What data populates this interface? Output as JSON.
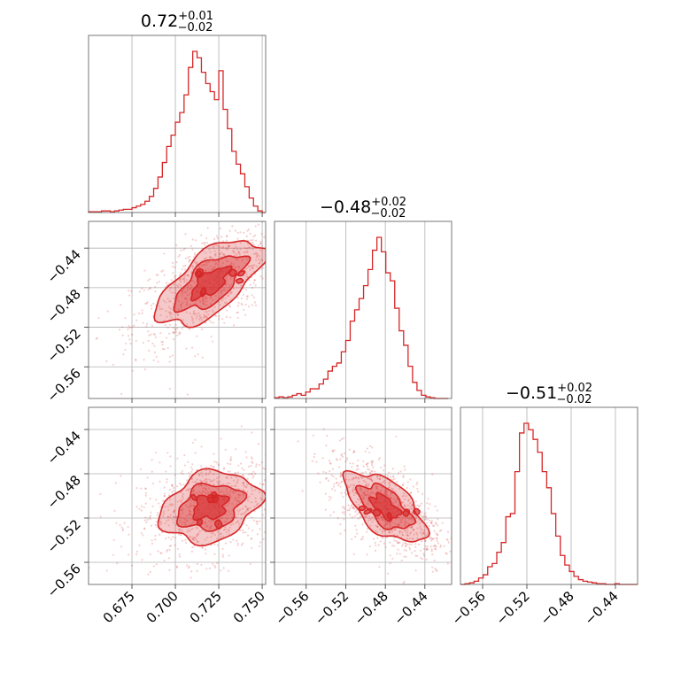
{
  "chart_data": {
    "type": "corner",
    "color": "#d62728",
    "parameters": [
      {
        "title_value": "0.72",
        "title_plus": "+0.01",
        "title_minus": "−0.02",
        "range": [
          0.65,
          0.752
        ],
        "ticks": [
          0.675,
          0.7,
          0.725,
          0.75
        ],
        "tick_labels": [
          "0.675",
          "0.700",
          "0.725",
          "0.750"
        ]
      },
      {
        "title_value": "−0.48",
        "title_plus": "+0.02",
        "title_minus": "−0.02",
        "range": [
          -0.592,
          -0.413
        ],
        "ticks": [
          -0.56,
          -0.52,
          -0.48,
          -0.44
        ],
        "tick_labels": [
          "−0.56",
          "−0.52",
          "−0.48",
          "−0.44"
        ]
      },
      {
        "title_value": "−0.51",
        "title_plus": "+0.02",
        "title_minus": "−0.02",
        "range": [
          -0.58,
          -0.42
        ],
        "ticks": [
          -0.56,
          -0.52,
          -0.48,
          -0.44
        ],
        "tick_labels": [
          "−0.56",
          "−0.52",
          "−0.48",
          "−0.44"
        ]
      }
    ],
    "histograms": [
      {
        "param": 0,
        "bin_start": 0.65,
        "bin_width": 0.0025,
        "counts": [
          0.005,
          0.005,
          0.005,
          0.01,
          0.01,
          0.005,
          0.01,
          0.015,
          0.02,
          0.02,
          0.03,
          0.04,
          0.05,
          0.07,
          0.1,
          0.15,
          0.22,
          0.31,
          0.41,
          0.48,
          0.56,
          0.62,
          0.73,
          0.9,
          1.0,
          0.96,
          0.87,
          0.8,
          0.75,
          0.7,
          0.88,
          0.64,
          0.52,
          0.38,
          0.3,
          0.24,
          0.16,
          0.09,
          0.04,
          0.01,
          0.0
        ]
      },
      {
        "param": 1,
        "bin_start": -0.592,
        "bin_width": 0.0045,
        "counts": [
          0.005,
          0.01,
          0.005,
          0.01,
          0.02,
          0.03,
          0.02,
          0.04,
          0.06,
          0.06,
          0.09,
          0.12,
          0.17,
          0.2,
          0.22,
          0.29,
          0.36,
          0.48,
          0.55,
          0.62,
          0.7,
          0.8,
          0.92,
          1.0,
          0.91,
          0.78,
          0.73,
          0.56,
          0.42,
          0.33,
          0.2,
          0.1,
          0.05,
          0.02,
          0.01,
          0.005,
          0.0,
          0.0,
          0.0
        ]
      },
      {
        "param": 2,
        "bin_start": -0.58,
        "bin_width": 0.0041,
        "counts": [
          0.0,
          0.005,
          0.01,
          0.02,
          0.04,
          0.06,
          0.11,
          0.13,
          0.2,
          0.26,
          0.42,
          0.44,
          0.7,
          0.94,
          1.0,
          0.96,
          0.9,
          0.82,
          0.7,
          0.6,
          0.44,
          0.3,
          0.18,
          0.12,
          0.08,
          0.05,
          0.03,
          0.02,
          0.015,
          0.01,
          0.005,
          0.005,
          0.0,
          0.0,
          0.005,
          0.0,
          0.0,
          0.0,
          0.0
        ]
      }
    ],
    "joint_distributions": [
      {
        "x_param": 0,
        "y_param": 1,
        "mean": [
          0.72,
          -0.475
        ],
        "std": [
          0.015,
          0.022
        ],
        "correlation": 0.65
      },
      {
        "x_param": 0,
        "y_param": 2,
        "mean": [
          0.72,
          -0.51
        ],
        "std": [
          0.014,
          0.016
        ],
        "correlation": 0.25
      },
      {
        "x_param": 1,
        "y_param": 2,
        "mean": [
          -0.48,
          -0.51
        ],
        "std": [
          0.02,
          0.016
        ],
        "correlation": -0.6
      }
    ],
    "grid": true
  }
}
